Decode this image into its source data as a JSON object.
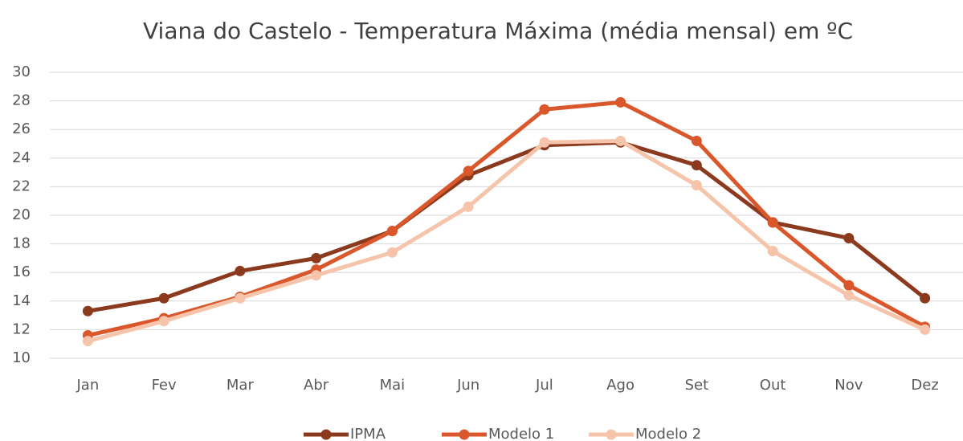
{
  "chart_data": {
    "type": "line",
    "title": "Viana do Castelo - Temperatura Máxima (média mensal) em ºC",
    "categories": [
      "Jan",
      "Fev",
      "Mar",
      "Abr",
      "Mai",
      "Jun",
      "Jul",
      "Ago",
      "Set",
      "Out",
      "Nov",
      "Dez"
    ],
    "series": [
      {
        "name": "IPMA",
        "color": "#8b3a1e",
        "values": [
          13.3,
          14.2,
          16.1,
          17.0,
          18.9,
          22.8,
          24.9,
          25.1,
          23.5,
          19.5,
          18.4,
          14.2
        ]
      },
      {
        "name": "Modelo 1",
        "color": "#d9572b",
        "values": [
          11.6,
          12.8,
          14.3,
          16.2,
          18.9,
          23.1,
          27.4,
          27.9,
          25.2,
          19.5,
          15.1,
          12.2
        ]
      },
      {
        "name": "Modelo 2",
        "color": "#f5c4aa",
        "values": [
          11.2,
          12.6,
          14.2,
          15.8,
          17.4,
          20.6,
          25.1,
          25.2,
          22.1,
          17.5,
          14.4,
          12.0
        ]
      }
    ],
    "ylim": [
      10,
      30
    ],
    "yticks": [
      10,
      12,
      14,
      16,
      18,
      20,
      22,
      24,
      26,
      28,
      30
    ],
    "grid": true,
    "legend": "bottom"
  }
}
